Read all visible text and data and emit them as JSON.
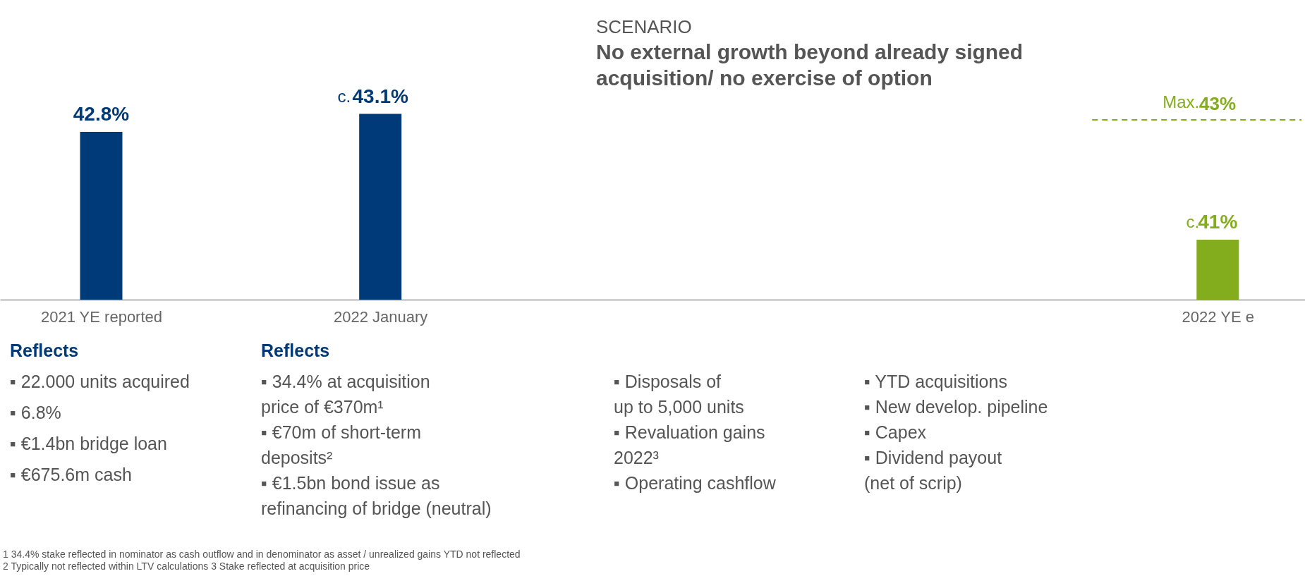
{
  "chart_data": {
    "type": "bar",
    "categories": [
      "2021 YE reported",
      "2022 January",
      null,
      null,
      "2022 YE e"
    ],
    "values": [
      42.8,
      43.1,
      null,
      null,
      41
    ],
    "colors": [
      "#003a78",
      "#003a78",
      null,
      null,
      "#84ad1e"
    ],
    "value_labels": [
      "42.8%",
      "43.1%",
      null,
      null,
      "41%"
    ],
    "ylim": [
      40,
      45
    ],
    "tick_labels": "x",
    "grid": false,
    "ref_lines": [
      {
        "axis": "y",
        "value": 43,
        "label": "43%",
        "color": "#84ad1e",
        "line_style": "dashed"
      }
    ],
    "annotations": [
      "SCENARIO",
      "No external growth beyond already signed\nacquisition/ no exercise of option",
      "Reflects",
      "▪ 22.000 units acquired\n▪ 6.8%\n▪ €1.4bn bridge loan\n▪ €675.6m cash",
      "Reflects",
      "▪ 34.4% at acquisition\n   price of €370m¹\n▪ €70m of short-term\n   deposits²\n▪ €1.5bn bond issue as\n   refinancing of bridge (neutral)",
      "▪ Disposals of\n   up to 5,000 units\n▪ Revaluation gains\n   2022³\n▪ Operating cashflow",
      "▪ YTD acquisitions\n▪ New develop. pipeline\n▪ Capex\n▪ Dividend payout\n   (net of scrip)",
      "1  34.4% stake reflected in nominator as cash outflow and in denominator as asset / unrealized gains YTD not reflected",
      "2  Typically not reflected within LTV calculations      3  Stake reflected at acquisition price",
      {
        "text": "c.",
        "x": "2022 January",
        "y": 43.1
      },
      {
        "text": "c.",
        "x": "2022 YE e",
        "y": 41
      },
      {
        "text": "Max.",
        "x": "2022 YE e",
        "y": 43
      }
    ]
  }
}
